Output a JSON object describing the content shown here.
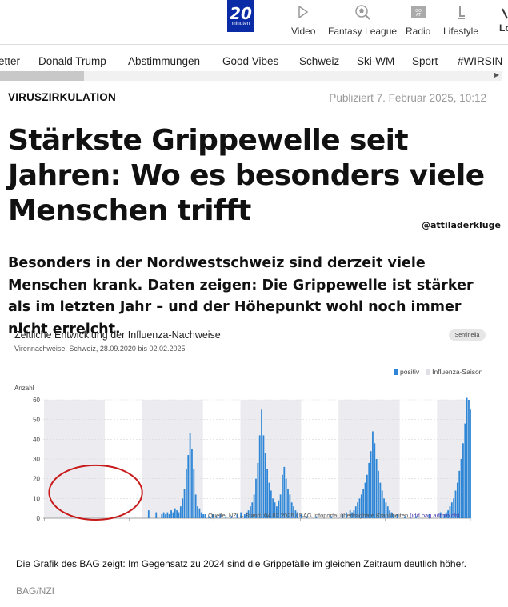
{
  "header": {
    "logo_big": "20",
    "logo_small": "minuten",
    "nav": [
      {
        "label": "Video",
        "icon": "play-icon"
      },
      {
        "label": "Fantasy League",
        "icon": "soccer-ball-icon"
      },
      {
        "label": "Radio",
        "icon": "radio-icon"
      },
      {
        "label": "Lifestyle",
        "icon": "lamp-icon"
      },
      {
        "label": "Lo",
        "icon": "user-icon"
      }
    ]
  },
  "categories": [
    "etter",
    "Donald Trump",
    "Abstimmungen",
    "Good Vibes",
    "Schweiz",
    "Ski-WM",
    "Sport",
    "#WIRSIN"
  ],
  "article": {
    "kicker": "VIRUSZIRKULATION",
    "published": "Publiziert 7. Februar 2025, 10:12",
    "headline": "Stärkste Grippewelle seit Jahren: Wo es besonders viele Menschen trifft",
    "watermark": "@attiladerkluge",
    "lead": "Besonders in der Nordwestschweiz sind derzeit viele Menschen krank. Daten zeigen: Die Grippewelle ist stärker als im letzten Jahr – und der Höhepunkt wohl noch immer nicht erreicht.",
    "caption": "Die Grafik des BAG zeigt: Im Gegensatz zu 2024 sind die Grippefälle im gleichen Zeitraum deutlich höher.",
    "credit": "BAG/NZI"
  },
  "chart": {
    "title": "Zeitliche Entwicklung der Influenza-Nachweise",
    "subtitle": "Virennachweise, Schweiz, 28.09.2020 bis 02.02.2025",
    "badge": "Sentinella",
    "source_prefix": "Quelle: NZI – Stand: 04.02.2025 / BAG Infoportal übertragbare Krankheiten",
    "source_link": "(idd.bag.admin.ch)",
    "colors": {
      "positive": "#2f86d6",
      "season": "#ececf0",
      "circle": "#c81a1a"
    }
  },
  "chart_data": {
    "type": "bar",
    "title": "Zeitliche Entwicklung der Influenza-Nachweise",
    "ylabel": "Anzahl",
    "ylim": [
      0,
      60
    ],
    "yticks": [
      0,
      10,
      20,
      30,
      40,
      50,
      60
    ],
    "xlim": [
      "2020-09-28",
      "2025-02-02"
    ],
    "xticks": [
      "02.10.2020",
      "13.08.2021",
      "24.06.2022",
      "12.05.2023",
      "22.03.2024",
      "02.02.2025"
    ],
    "legend": [
      "positiv",
      "Influenza-Saison"
    ],
    "legend_position": "top-right",
    "grid": true,
    "seasons": [
      [
        "2020-10-01",
        "2021-05-15"
      ],
      [
        "2021-10-01",
        "2022-05-15"
      ],
      [
        "2022-10-01",
        "2023-05-15"
      ],
      [
        "2023-10-01",
        "2024-05-15"
      ],
      [
        "2024-10-01",
        "2025-02-02"
      ]
    ],
    "series": [
      {
        "name": "positiv",
        "x": [
          "2021-10-25",
          "2021-11-22",
          "2021-12-13",
          "2021-12-20",
          "2021-12-27",
          "2022-01-03",
          "2022-01-10",
          "2022-01-17",
          "2022-01-24",
          "2022-01-31",
          "2022-02-07",
          "2022-02-14",
          "2022-02-21",
          "2022-02-28",
          "2022-03-07",
          "2022-03-14",
          "2022-03-21",
          "2022-03-28",
          "2022-04-04",
          "2022-04-11",
          "2022-04-18",
          "2022-04-25",
          "2022-05-02",
          "2022-05-09",
          "2022-05-16",
          "2022-05-23",
          "2022-06-06",
          "2022-06-20",
          "2022-07-04",
          "2022-07-18",
          "2022-08-08",
          "2022-08-29",
          "2022-09-19",
          "2022-10-03",
          "2022-10-17",
          "2022-10-24",
          "2022-10-31",
          "2022-11-07",
          "2022-11-14",
          "2022-11-21",
          "2022-11-28",
          "2022-12-05",
          "2022-12-12",
          "2022-12-19",
          "2022-12-26",
          "2023-01-02",
          "2023-01-09",
          "2023-01-16",
          "2023-01-23",
          "2023-01-30",
          "2023-02-06",
          "2023-02-13",
          "2023-02-20",
          "2023-02-27",
          "2023-03-06",
          "2023-03-13",
          "2023-03-20",
          "2023-03-27",
          "2023-04-03",
          "2023-04-10",
          "2023-04-17",
          "2023-04-24",
          "2023-05-01",
          "2023-05-15",
          "2023-06-05",
          "2023-07-10",
          "2023-09-04",
          "2023-10-16",
          "2023-10-30",
          "2023-11-13",
          "2023-11-20",
          "2023-11-27",
          "2023-12-04",
          "2023-12-11",
          "2023-12-18",
          "2023-12-25",
          "2024-01-01",
          "2024-01-08",
          "2024-01-15",
          "2024-01-22",
          "2024-01-29",
          "2024-02-05",
          "2024-02-12",
          "2024-02-19",
          "2024-02-26",
          "2024-03-04",
          "2024-03-11",
          "2024-03-18",
          "2024-03-25",
          "2024-04-01",
          "2024-04-08",
          "2024-04-15",
          "2024-04-22",
          "2024-05-06",
          "2024-06-03",
          "2024-07-15",
          "2024-09-02",
          "2024-10-14",
          "2024-10-28",
          "2024-11-04",
          "2024-11-11",
          "2024-11-18",
          "2024-11-25",
          "2024-12-02",
          "2024-12-09",
          "2024-12-16",
          "2024-12-23",
          "2024-12-30",
          "2025-01-06",
          "2025-01-13",
          "2025-01-20",
          "2025-01-27",
          "2025-02-02"
        ],
        "values": [
          4,
          3,
          2,
          3,
          2,
          3,
          2,
          4,
          3,
          5,
          4,
          3,
          6,
          10,
          15,
          25,
          32,
          43,
          35,
          25,
          12,
          6,
          5,
          3,
          2,
          2,
          1,
          2,
          1,
          2,
          1,
          1,
          2,
          3,
          2,
          3,
          4,
          6,
          8,
          12,
          20,
          28,
          42,
          55,
          42,
          33,
          25,
          18,
          14,
          10,
          8,
          6,
          9,
          12,
          22,
          26,
          20,
          15,
          12,
          8,
          6,
          4,
          3,
          2,
          1,
          1,
          1,
          2,
          3,
          4,
          3,
          4,
          6,
          8,
          10,
          12,
          15,
          18,
          22,
          28,
          34,
          44,
          38,
          30,
          24,
          18,
          14,
          10,
          8,
          6,
          4,
          3,
          2,
          2,
          1,
          1,
          2,
          3,
          2,
          3,
          4,
          6,
          8,
          10,
          14,
          18,
          24,
          30,
          38,
          48,
          61,
          60,
          55
        ]
      }
    ]
  }
}
